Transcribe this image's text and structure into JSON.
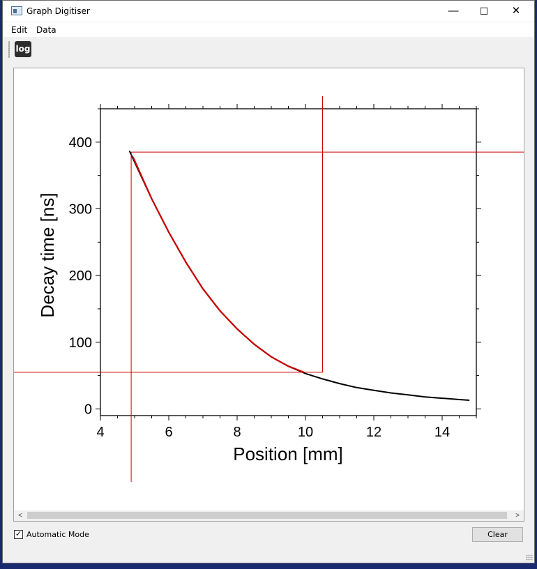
{
  "window": {
    "title": "Graph Digitiser",
    "controls": {
      "minimize": "—",
      "maximize": "☐",
      "close": "✕"
    }
  },
  "menu": {
    "items": [
      "Edit",
      "Data"
    ]
  },
  "toolbar": {
    "log_label": "log"
  },
  "chart_data": {
    "type": "line",
    "xlabel": "Position [mm]",
    "ylabel": "Decay time [ns]",
    "xlim": [
      4,
      15
    ],
    "ylim": [
      -10,
      450
    ],
    "xticks": [
      4,
      6,
      8,
      10,
      12,
      14
    ],
    "yticks": [
      0,
      100,
      200,
      300,
      400
    ],
    "series": [
      {
        "color": "#000000",
        "x": [
          4.85,
          5.0,
          5.5,
          6.0,
          6.5,
          7.0,
          7.5,
          8.0,
          8.5,
          9.0,
          9.5,
          10.0,
          10.5,
          11.0,
          11.5,
          12.0,
          12.5,
          13.0,
          13.5,
          14.0,
          14.5,
          14.8
        ],
        "y": [
          387,
          370,
          315,
          265,
          220,
          180,
          147,
          120,
          97,
          78,
          64,
          53,
          45,
          38,
          32,
          28,
          24,
          21,
          18,
          16,
          14,
          13
        ]
      },
      {
        "color": "#cc0000",
        "x": [
          4.95,
          5.5,
          6.0,
          6.5,
          7.0,
          7.5,
          8.0,
          8.5,
          9.0,
          9.5,
          9.95
        ],
        "y": [
          378,
          315,
          265,
          220,
          180,
          147,
          120,
          97,
          78,
          64,
          55
        ]
      }
    ],
    "crosshairs": {
      "color": "#cc0000",
      "x1": 4.9,
      "y1": 385,
      "x2": 10.5,
      "y2": 55
    },
    "grid": false
  },
  "scrollbar": {
    "left_arrow": "<",
    "right_arrow": ">"
  },
  "footer": {
    "automatic_mode_label": "Automatic Mode",
    "automatic_mode_checked": "✓",
    "clear_label": "Clear"
  }
}
